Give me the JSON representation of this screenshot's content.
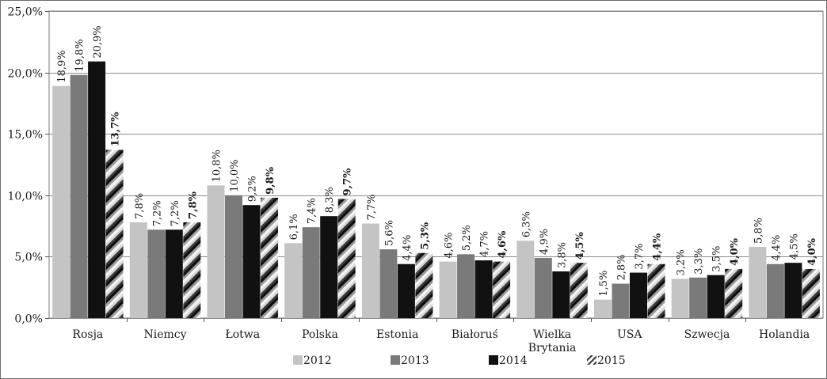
{
  "chart_data": {
    "type": "bar",
    "categories": [
      "Rosja",
      "Niemcy",
      "Łotwa",
      "Polska",
      "Estonia",
      "Białoruś",
      "Wielka Brytania",
      "USA",
      "Szwecja",
      "Holandia"
    ],
    "series": [
      {
        "name": "2012",
        "values": [
          18.9,
          7.8,
          10.8,
          6.1,
          7.7,
          4.6,
          6.3,
          1.5,
          3.2,
          5.8
        ],
        "labels": [
          "18,9%",
          "7,8%",
          "10,8%",
          "6,1%",
          "7,7%",
          "4,6%",
          "6,3%",
          "1,5%",
          "3,2%",
          "5,8%"
        ],
        "color": "#c4c4c4"
      },
      {
        "name": "2013",
        "values": [
          19.8,
          7.2,
          10.0,
          7.4,
          5.6,
          5.2,
          4.9,
          2.8,
          3.3,
          4.4
        ],
        "labels": [
          "19,8%",
          "7,2%",
          "10,0%",
          "7,4%",
          "5,6%",
          "5,2%",
          "4,9%",
          "2,8%",
          "3,3%",
          "4,4%"
        ],
        "color": "#7a7a7a"
      },
      {
        "name": "2014",
        "values": [
          20.9,
          7.2,
          9.2,
          8.3,
          4.4,
          4.7,
          3.8,
          3.7,
          3.5,
          4.5
        ],
        "labels": [
          "20,9%",
          "7,2%",
          "9,2%",
          "8,3%",
          "4,4%",
          "4,7%",
          "3,8%",
          "3,7%",
          "3,5%",
          "4,5%"
        ],
        "color": "#111111"
      },
      {
        "name": "2015",
        "values": [
          13.7,
          7.8,
          9.8,
          9.7,
          5.3,
          4.6,
          4.5,
          4.4,
          4.0,
          4.0
        ],
        "labels": [
          "13,7%",
          "7,8%",
          "9,8%",
          "9,7%",
          "5,3%",
          "4,6%",
          "4,5%",
          "4,4%",
          "4,0%",
          "4,0%"
        ],
        "color": "pattern",
        "bold_labels": true
      }
    ],
    "y_ticks": [
      "0,0%",
      "5,0%",
      "10,0%",
      "15,0%",
      "20,0%",
      "25,0%"
    ],
    "ylim": [
      0,
      25
    ],
    "grid": true,
    "legend": "bottom",
    "title": "",
    "xlabel": "",
    "ylabel": ""
  }
}
